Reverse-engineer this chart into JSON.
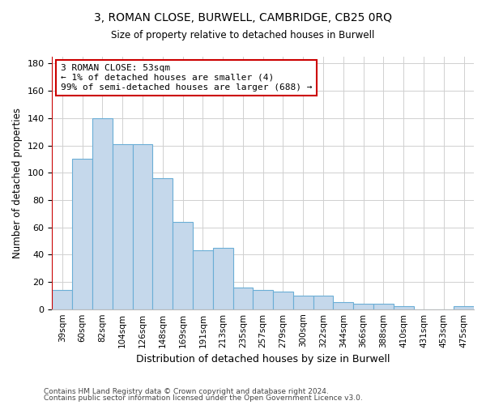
{
  "title1": "3, ROMAN CLOSE, BURWELL, CAMBRIDGE, CB25 0RQ",
  "title2": "Size of property relative to detached houses in Burwell",
  "xlabel": "Distribution of detached houses by size in Burwell",
  "ylabel": "Number of detached properties",
  "footer1": "Contains HM Land Registry data © Crown copyright and database right 2024.",
  "footer2": "Contains public sector information licensed under the Open Government Licence v3.0.",
  "annotation_line1": "3 ROMAN CLOSE: 53sqm",
  "annotation_line2": "← 1% of detached houses are smaller (4)",
  "annotation_line3": "99% of semi-detached houses are larger (688) →",
  "bar_color": "#c5d8eb",
  "bar_edge_color": "#6aaed6",
  "grid_color": "#d0d0d0",
  "annotation_box_edge_color": "#cc0000",
  "marker_line_color": "#cc0000",
  "categories": [
    "39sqm",
    "60sqm",
    "82sqm",
    "104sqm",
    "126sqm",
    "148sqm",
    "169sqm",
    "191sqm",
    "213sqm",
    "235sqm",
    "257sqm",
    "279sqm",
    "300sqm",
    "322sqm",
    "344sqm",
    "366sqm",
    "388sqm",
    "410sqm",
    "431sqm",
    "453sqm",
    "475sqm"
  ],
  "values": [
    14,
    110,
    140,
    121,
    121,
    96,
    64,
    43,
    45,
    16,
    14,
    13,
    10,
    10,
    5,
    4,
    4,
    2,
    0,
    0,
    2
  ],
  "ylim": [
    0,
    185
  ],
  "yticks": [
    0,
    20,
    40,
    60,
    80,
    100,
    120,
    140,
    160,
    180
  ],
  "figsize": [
    6.0,
    5.0
  ],
  "dpi": 100
}
